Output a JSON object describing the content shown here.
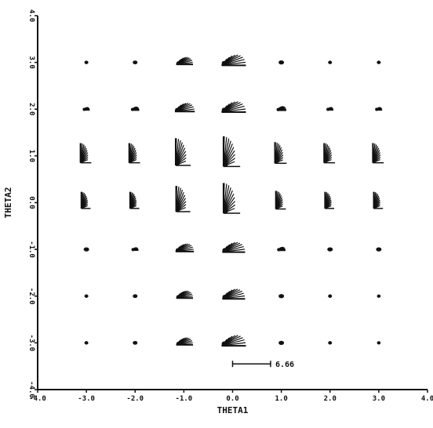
{
  "chart_data": {
    "type": "scatter",
    "xlabel": "THETA1",
    "ylabel": "THETA2",
    "xlim": [
      -4.0,
      4.0
    ],
    "ylim": [
      -4.0,
      4.0
    ],
    "x_ticks": [
      "-4.0",
      "-3.0",
      "-2.0",
      "-1.0",
      "0.0",
      "1.0",
      "2.0",
      "3.0",
      "4.0"
    ],
    "y_ticks": [
      "-4.0",
      "-3.0",
      "-2.0",
      "-1.0",
      "0.0",
      "1.0",
      "2.0",
      "3.0",
      "4.0"
    ],
    "grid": false,
    "x": [
      -3.0,
      -2.0,
      -1.0,
      0.0,
      1.0,
      2.0,
      3.0
    ],
    "y": [
      -3.0,
      -2.0,
      -1.0,
      0.0,
      1.0,
      2.0,
      3.0
    ],
    "glyph_size": [
      [
        0.05,
        0.1,
        0.55,
        0.8,
        0.15,
        0.05,
        0.03
      ],
      [
        0.05,
        0.1,
        0.55,
        0.75,
        0.15,
        0.05,
        0.03
      ],
      [
        0.15,
        0.2,
        0.6,
        0.75,
        0.25,
        0.15,
        0.15
      ],
      [
        0.55,
        0.55,
        0.85,
        1.0,
        0.6,
        0.55,
        0.55
      ],
      [
        0.65,
        0.65,
        0.9,
        1.0,
        0.7,
        0.65,
        0.65
      ],
      [
        0.2,
        0.25,
        0.65,
        0.8,
        0.3,
        0.2,
        0.2
      ],
      [
        0.05,
        0.1,
        0.55,
        0.8,
        0.15,
        0.05,
        0.05
      ]
    ],
    "glyph_orientation": [
      [
        "h",
        "h",
        "h",
        "h",
        "h",
        "h",
        "h"
      ],
      [
        "h",
        "h",
        "h",
        "h",
        "h",
        "h",
        "h"
      ],
      [
        "h",
        "h",
        "h",
        "h",
        "h",
        "h",
        "h"
      ],
      [
        "v",
        "v",
        "v",
        "v",
        "v",
        "v",
        "v"
      ],
      [
        "v",
        "v",
        "v",
        "v",
        "v",
        "v",
        "v"
      ],
      [
        "h",
        "h",
        "h",
        "h",
        "h",
        "h",
        "h"
      ],
      [
        "h",
        "h",
        "h",
        "h",
        "h",
        "h",
        "h"
      ]
    ],
    "scale_bar": {
      "label": "6.66"
    },
    "colors": {
      "ink": "#111111",
      "background": "#ffffff"
    }
  }
}
